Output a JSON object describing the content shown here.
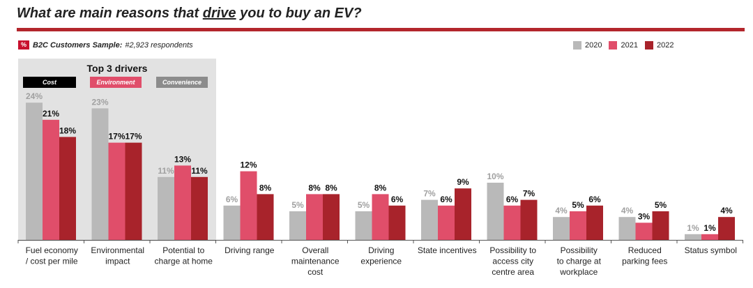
{
  "header": {
    "title_pre": "What are main reasons that ",
    "title_emph": "drive",
    "title_post": " you to buy an EV?"
  },
  "sample": {
    "badge": "%",
    "label": "B2C Customers Sample:",
    "value": "#2,923 respondents"
  },
  "legend": [
    {
      "label": "2020",
      "color": "#b9b9b9"
    },
    {
      "label": "2021",
      "color": "#e04e6a"
    },
    {
      "label": "2022",
      "color": "#a8232b"
    }
  ],
  "top_drivers": {
    "title": "Top 3 drivers",
    "tags": [
      {
        "label": "Cost",
        "color": "#000000"
      },
      {
        "label": "Environment",
        "color": "#e04e6a"
      },
      {
        "label": "Convenience",
        "color": "#8c8c8c"
      }
    ]
  },
  "chart_data": {
    "type": "bar",
    "title": "What are main reasons that drive you to buy an EV?",
    "categories": [
      [
        "Fuel economy",
        "/ cost per mile"
      ],
      [
        "Environmental",
        "impact"
      ],
      [
        "Potential to",
        "charge at home"
      ],
      [
        "Driving range"
      ],
      [
        "Overall",
        "maintenance",
        "cost"
      ],
      [
        "Driving",
        "experience"
      ],
      [
        "State incentives"
      ],
      [
        "Possibility to",
        "access city",
        "centre area"
      ],
      [
        "Possibility",
        "to charge at",
        "workplace"
      ],
      [
        "Reduced",
        "parking fees"
      ],
      [
        "Status symbol"
      ]
    ],
    "series": [
      {
        "name": "2020",
        "values": [
          24,
          23,
          11,
          6,
          5,
          5,
          7,
          10,
          4,
          4,
          1
        ]
      },
      {
        "name": "2021",
        "values": [
          21,
          17,
          13,
          12,
          8,
          8,
          6,
          6,
          5,
          3,
          1
        ]
      },
      {
        "name": "2022",
        "values": [
          18,
          17,
          11,
          8,
          8,
          6,
          9,
          7,
          6,
          5,
          4
        ]
      }
    ],
    "unit": "%",
    "grid": false
  }
}
